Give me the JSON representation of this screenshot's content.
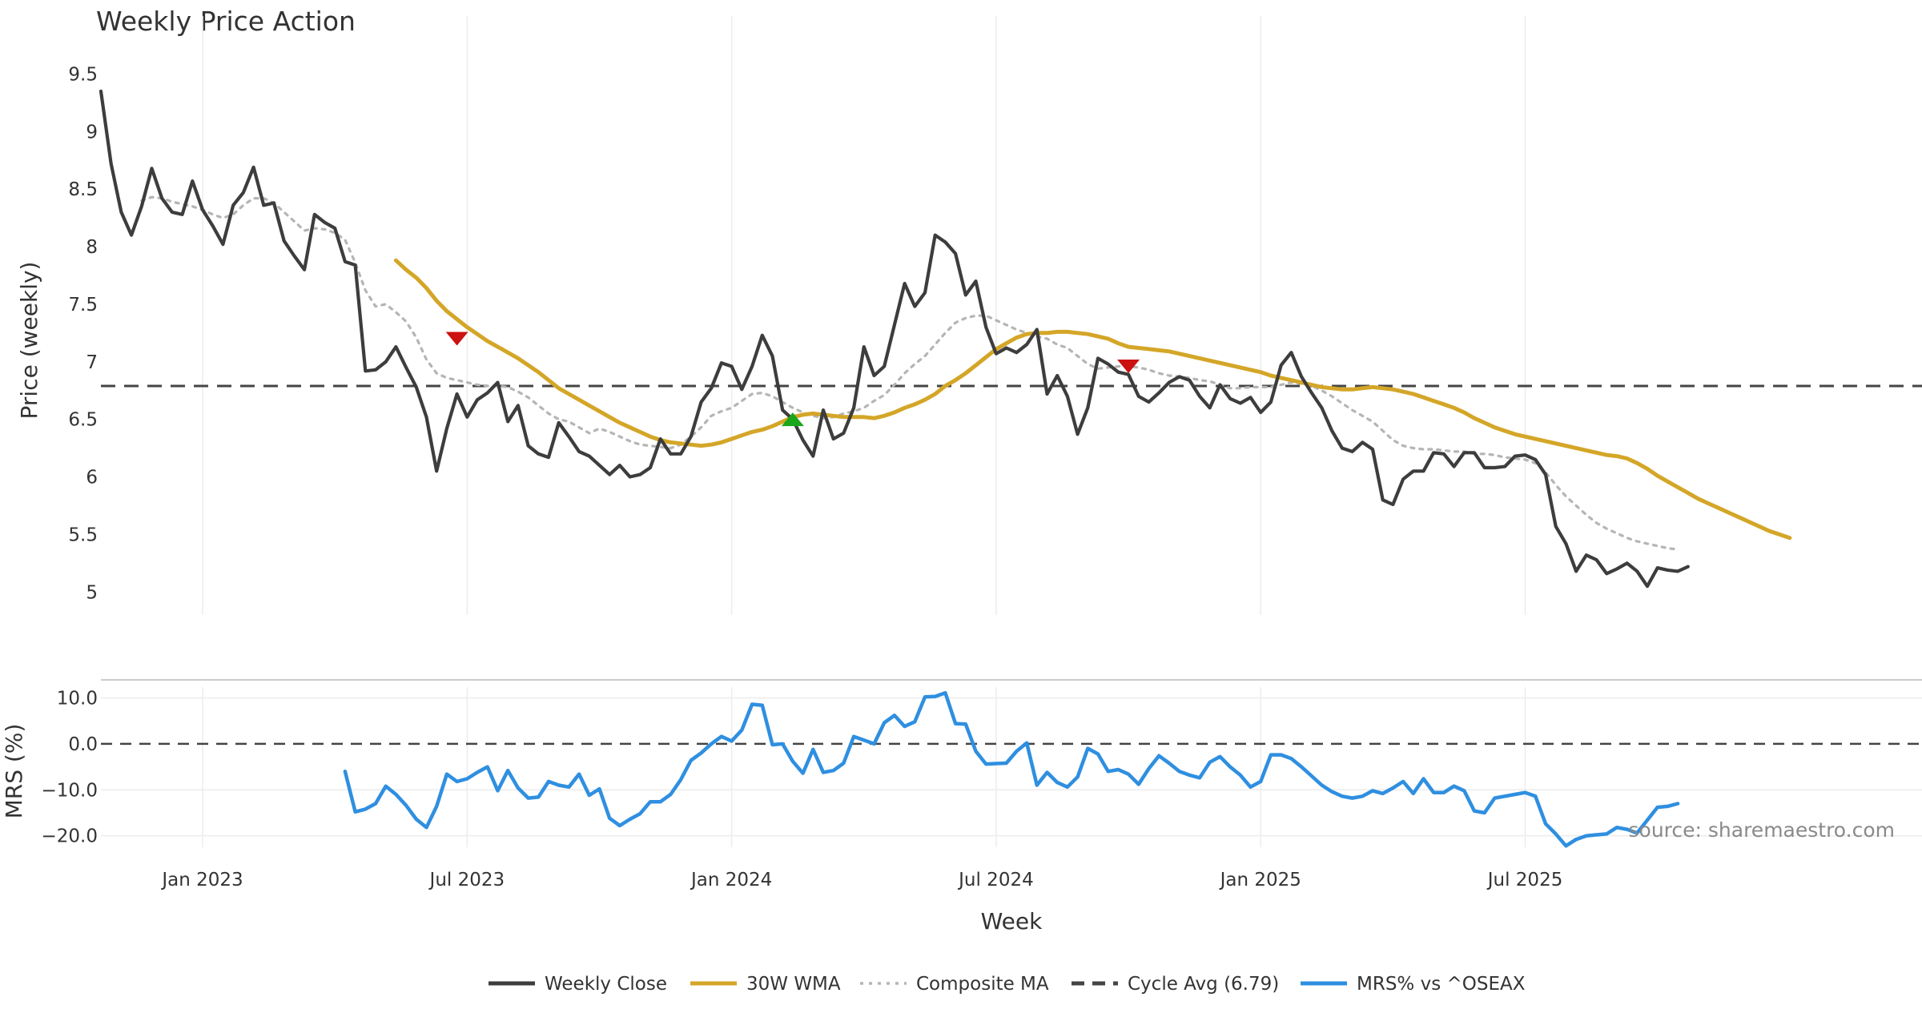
{
  "chart_data": {
    "type": "line",
    "title": "Weekly Price Action",
    "xlabel": "Week",
    "x_ticks": [
      "Jan 2023",
      "Jul 2023",
      "Jan 2024",
      "Jul 2024",
      "Jan 2025",
      "Jul 2025"
    ],
    "x_range_weeks": [
      0,
      179
    ],
    "x_tick_weeks": [
      10,
      36,
      62,
      88,
      114,
      140
    ],
    "source": "source: sharemaestro.com",
    "price_panel": {
      "ylabel": "Price (weekly)",
      "ylim": [
        4.8,
        9.6
      ],
      "yticks": [
        5,
        5.5,
        6,
        6.5,
        7,
        7.5,
        8,
        8.5,
        9,
        9.5
      ],
      "ytick_labels": [
        "5",
        "5.5",
        "6",
        "6.5",
        "7",
        "7.5",
        "8",
        "8.5",
        "9",
        "9.5"
      ],
      "cycle_avg": 6.79,
      "series": [
        {
          "name": "Weekly Close",
          "color": "#3d3d3d",
          "style": "solid",
          "start": 0,
          "values": [
            9.35,
            8.72,
            8.3,
            8.1,
            8.35,
            8.68,
            8.42,
            8.3,
            8.28,
            8.57,
            8.32,
            8.18,
            8.02,
            8.36,
            8.47,
            8.69,
            8.36,
            8.38,
            8.05,
            7.92,
            7.8,
            8.28,
            8.21,
            8.16,
            7.87,
            7.84,
            6.92,
            6.93,
            7.0,
            7.13,
            6.95,
            6.78,
            6.52,
            6.05,
            6.42,
            6.72,
            6.52,
            6.67,
            6.73,
            6.82,
            6.48,
            6.62,
            6.27,
            6.2,
            6.17,
            6.47,
            6.35,
            6.22,
            6.18,
            6.1,
            6.02,
            6.1,
            6.0,
            6.02,
            6.08,
            6.33,
            6.2,
            6.2,
            6.35,
            6.65,
            6.77,
            6.99,
            6.96,
            6.76,
            6.96,
            7.23,
            7.05,
            6.58,
            6.5,
            6.32,
            6.18,
            6.58,
            6.33,
            6.38,
            6.6,
            7.13,
            6.88,
            6.96,
            7.32,
            7.68,
            7.48,
            7.6,
            8.1,
            8.04,
            7.94,
            7.58,
            7.7,
            7.3,
            7.07,
            7.12,
            7.08,
            7.15,
            7.28,
            6.72,
            6.88,
            6.7,
            6.37,
            6.6,
            7.03,
            6.98,
            6.91,
            6.89,
            6.7,
            6.65,
            6.73,
            6.82,
            6.87,
            6.84,
            6.7,
            6.6,
            6.8,
            6.68,
            6.64,
            6.69,
            6.56,
            6.65,
            6.97,
            7.08,
            6.87,
            6.73,
            6.6,
            6.4,
            6.25,
            6.22,
            6.3,
            6.24,
            5.8,
            5.76,
            5.98,
            6.05,
            6.05,
            6.21,
            6.2,
            6.09,
            6.21,
            6.21,
            6.08,
            6.08,
            6.09,
            6.18,
            6.19,
            6.15,
            6.02,
            5.57,
            5.42,
            5.18,
            5.32,
            5.28,
            5.16,
            5.2,
            5.25,
            5.18,
            5.05,
            5.21,
            5.19,
            5.18,
            5.22
          ]
        },
        {
          "name": "30W WMA",
          "color": "#d4a628",
          "style": "solid",
          "start": 29,
          "values": [
            7.88,
            7.8,
            7.73,
            7.64,
            7.53,
            7.44,
            7.37,
            7.3,
            7.24,
            7.18,
            7.13,
            7.08,
            7.03,
            6.97,
            6.91,
            6.84,
            6.77,
            6.72,
            6.67,
            6.62,
            6.57,
            6.52,
            6.47,
            6.43,
            6.39,
            6.35,
            6.32,
            6.3,
            6.29,
            6.28,
            6.27,
            6.28,
            6.3,
            6.33,
            6.36,
            6.39,
            6.41,
            6.44,
            6.48,
            6.52,
            6.54,
            6.55,
            6.54,
            6.53,
            6.52,
            6.52,
            6.52,
            6.51,
            6.53,
            6.56,
            6.6,
            6.63,
            6.67,
            6.72,
            6.79,
            6.84,
            6.9,
            6.97,
            7.04,
            7.11,
            7.16,
            7.21,
            7.24,
            7.25,
            7.25,
            7.26,
            7.26,
            7.25,
            7.24,
            7.22,
            7.2,
            7.16,
            7.13,
            7.12,
            7.11,
            7.1,
            7.09,
            7.07,
            7.05,
            7.03,
            7.01,
            6.99,
            6.97,
            6.95,
            6.93,
            6.91,
            6.88,
            6.86,
            6.84,
            6.82,
            6.8,
            6.78,
            6.77,
            6.76,
            6.76,
            6.77,
            6.78,
            6.77,
            6.76,
            6.74,
            6.72,
            6.69,
            6.66,
            6.63,
            6.6,
            6.56,
            6.51,
            6.47,
            6.43,
            6.4,
            6.37,
            6.35,
            6.33,
            6.31,
            6.29,
            6.27,
            6.25,
            6.23,
            6.21,
            6.19,
            6.18,
            6.16,
            6.12,
            6.07,
            6.01,
            5.96,
            5.91,
            5.86,
            5.81,
            5.77,
            5.73,
            5.69,
            5.65,
            5.61,
            5.57,
            5.53,
            5.5,
            5.47
          ]
        },
        {
          "name": "Composite MA",
          "color": "#b5b5b5",
          "style": "dotted",
          "start": 4,
          "values": [
            8.4,
            8.43,
            8.42,
            8.39,
            8.37,
            8.35,
            8.32,
            8.28,
            8.25,
            8.28,
            8.36,
            8.42,
            8.42,
            8.38,
            8.3,
            8.22,
            8.14,
            8.16,
            8.15,
            8.12,
            8.06,
            7.86,
            7.62,
            7.48,
            7.5,
            7.43,
            7.35,
            7.21,
            7.02,
            6.9,
            6.86,
            6.84,
            6.82,
            6.8,
            6.79,
            6.79,
            6.78,
            6.74,
            6.69,
            6.62,
            6.55,
            6.5,
            6.48,
            6.43,
            6.38,
            6.42,
            6.39,
            6.35,
            6.31,
            6.28,
            6.27,
            6.26,
            6.25,
            6.28,
            6.35,
            6.43,
            6.53,
            6.57,
            6.6,
            6.66,
            6.72,
            6.73,
            6.7,
            6.65,
            6.6,
            6.56,
            6.53,
            6.51,
            6.52,
            6.55,
            6.57,
            6.6,
            6.66,
            6.71,
            6.8,
            6.9,
            6.98,
            7.05,
            7.15,
            7.25,
            7.34,
            7.38,
            7.4,
            7.4,
            7.36,
            7.32,
            7.28,
            7.25,
            7.22,
            7.2,
            7.15,
            7.12,
            7.05,
            6.98,
            6.94,
            6.95,
            6.96,
            6.96,
            6.95,
            6.93,
            6.9,
            6.88,
            6.87,
            6.86,
            6.84,
            6.83,
            6.8,
            6.77,
            6.77,
            6.78,
            6.78,
            6.78,
            6.8,
            6.82,
            6.81,
            6.79,
            6.75,
            6.7,
            6.64,
            6.58,
            6.53,
            6.48,
            6.4,
            6.32,
            6.27,
            6.25,
            6.24,
            6.24,
            6.23,
            6.22,
            6.22,
            6.2,
            6.2,
            6.19,
            6.17,
            6.16,
            6.15,
            6.12,
            6.04,
            5.93,
            5.83,
            5.75,
            5.67,
            5.6,
            5.55,
            5.51,
            5.47,
            5.44,
            5.42,
            5.4,
            5.38,
            5.37
          ]
        }
      ],
      "signals": [
        {
          "type": "sell",
          "week": 35,
          "price": 7.2,
          "color": "#cc1111"
        },
        {
          "type": "buy",
          "week": 68,
          "price": 6.5,
          "color": "#1aa61a"
        },
        {
          "type": "sell",
          "week": 101,
          "price": 6.96,
          "color": "#cc1111"
        }
      ]
    },
    "mrs_panel": {
      "ylabel": "MRS (%)",
      "ylim": [
        -22.5,
        12
      ],
      "yticks": [
        -20,
        -10,
        0,
        10
      ],
      "ytick_labels": [
        "−20.0",
        "−10.0",
        "0.0",
        "10.0"
      ],
      "zero_line": 0,
      "series": [
        {
          "name": "MRS% vs ^OSEAX",
          "color": "#2f8fe0",
          "style": "solid",
          "start": 24,
          "values": [
            -6,
            -14.8,
            -14.2,
            -13,
            -9.2,
            -11,
            -13.4,
            -16.4,
            -18.2,
            -13.6,
            -6.6,
            -8.2,
            -7.6,
            -6.2,
            -5,
            -10.2,
            -5.8,
            -9.6,
            -11.8,
            -11.6,
            -8.2,
            -9,
            -9.4,
            -6.6,
            -11.2,
            -9.8,
            -16.2,
            -17.8,
            -16.4,
            -15.2,
            -12.6,
            -12.6,
            -11,
            -7.8,
            -3.6,
            -2,
            0,
            1.6,
            0.6,
            3,
            8.6,
            8.4,
            -0.2,
            0,
            -3.8,
            -6.4,
            -1.2,
            -6.2,
            -5.8,
            -4.2,
            1.6,
            0.8,
            0,
            4.6,
            6.2,
            3.8,
            4.8,
            10.2,
            10.3,
            11.1,
            4.4,
            4.3,
            -1.6,
            -4.4,
            -4.3,
            -4.2,
            -1.6,
            0.2,
            -9,
            -6.2,
            -8.4,
            -9.4,
            -7.2,
            -1,
            -2.2,
            -6,
            -5.6,
            -6.6,
            -8.8,
            -5.4,
            -2.6,
            -4.2,
            -6,
            -6.8,
            -7.4,
            -4,
            -2.8,
            -5,
            -6.8,
            -9.4,
            -8.2,
            -2.4,
            -2.4,
            -3.2,
            -5,
            -7,
            -9,
            -10.4,
            -11.4,
            -11.8,
            -11.4,
            -10.2,
            -10.8,
            -9.6,
            -8.2,
            -10.8,
            -7.6,
            -10.6,
            -10.6,
            -9.2,
            -10.2,
            -14.6,
            -15,
            -11.8,
            -11.4,
            -11,
            -10.6,
            -11.4,
            -17.4,
            -19.6,
            -22.2,
            -20.8,
            -20,
            -19.8,
            -19.6,
            -18.2,
            -18.6,
            -19.4,
            -16.6,
            -13.8,
            -13.6,
            -13
          ]
        }
      ]
    },
    "legend": [
      {
        "label": "Weekly Close",
        "color": "#3d3d3d",
        "style": "solid"
      },
      {
        "label": "30W WMA",
        "color": "#d4a628",
        "style": "solid"
      },
      {
        "label": "Composite MA",
        "color": "#b5b5b5",
        "style": "dotted"
      },
      {
        "label": "Cycle Avg (6.79)",
        "color": "#444444",
        "style": "dashed"
      },
      {
        "label": "MRS% vs ^OSEAX",
        "color": "#2f8fe0",
        "style": "solid"
      }
    ]
  }
}
